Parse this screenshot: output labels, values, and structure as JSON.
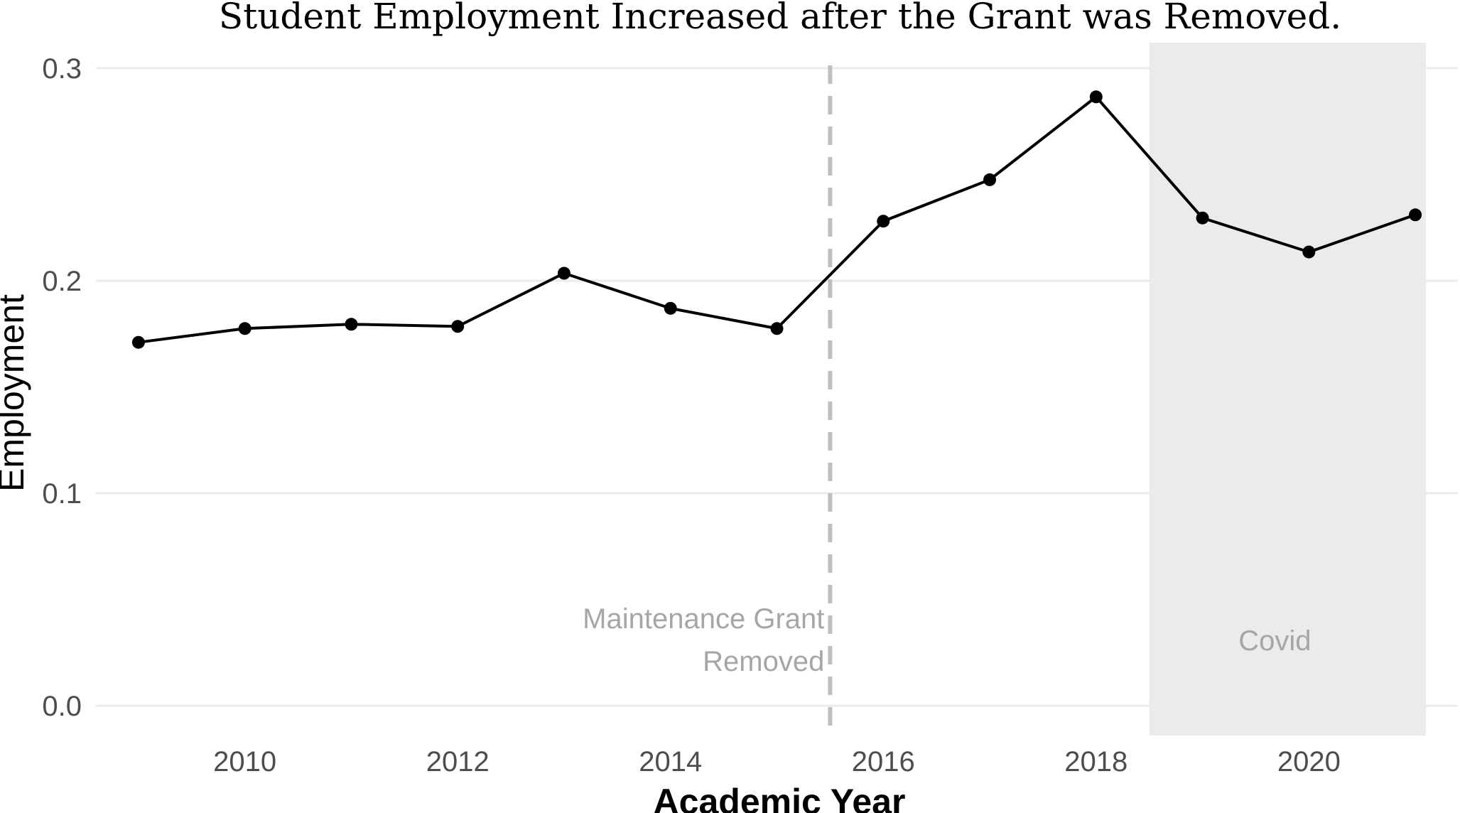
{
  "chart_data": {
    "type": "line",
    "title": "Student Employment Increased after the Grant was Removed.",
    "xlabel": "Academic Year",
    "ylabel": "Employment",
    "xlim": [
      2008.6,
      2021.4
    ],
    "ylim": [
      -0.014,
      0.312
    ],
    "x_ticks": [
      2010,
      2012,
      2014,
      2016,
      2018,
      2020
    ],
    "x_tick_labels": [
      "2010",
      "2012",
      "2014",
      "2016",
      "2018",
      "2020"
    ],
    "y_ticks": [
      0.0,
      0.1,
      0.2,
      0.3
    ],
    "y_tick_labels": [
      "0.0",
      "0.1",
      "0.2",
      "0.3"
    ],
    "grid": "horizontal major",
    "legend": "none",
    "series": [
      {
        "x": [
          2009,
          2010,
          2011,
          2012,
          2013,
          2014,
          2015,
          2016,
          2017,
          2018,
          2019,
          2020,
          2021
        ],
        "y": [
          0.171,
          0.1775,
          0.1795,
          0.1785,
          0.2035,
          0.187,
          0.1775,
          0.228,
          0.2475,
          0.2865,
          0.2295,
          0.2135,
          0.231
        ],
        "color": "#000000"
      }
    ],
    "annotations": {
      "vline": {
        "x": 2015.5,
        "color": "#bfbfbf",
        "style": "dashed",
        "label_lines": [
          "Maintenance Grant",
          "Removed"
        ]
      },
      "shaded_region": {
        "x_start": 2018.5,
        "x_end": 2021.1,
        "color": "#ebebeb",
        "label": "Covid"
      }
    },
    "colors": {
      "grid": "#ebebeb",
      "tick_text": "#4d4d4d",
      "annotation_text": "#a6a6a6"
    }
  }
}
